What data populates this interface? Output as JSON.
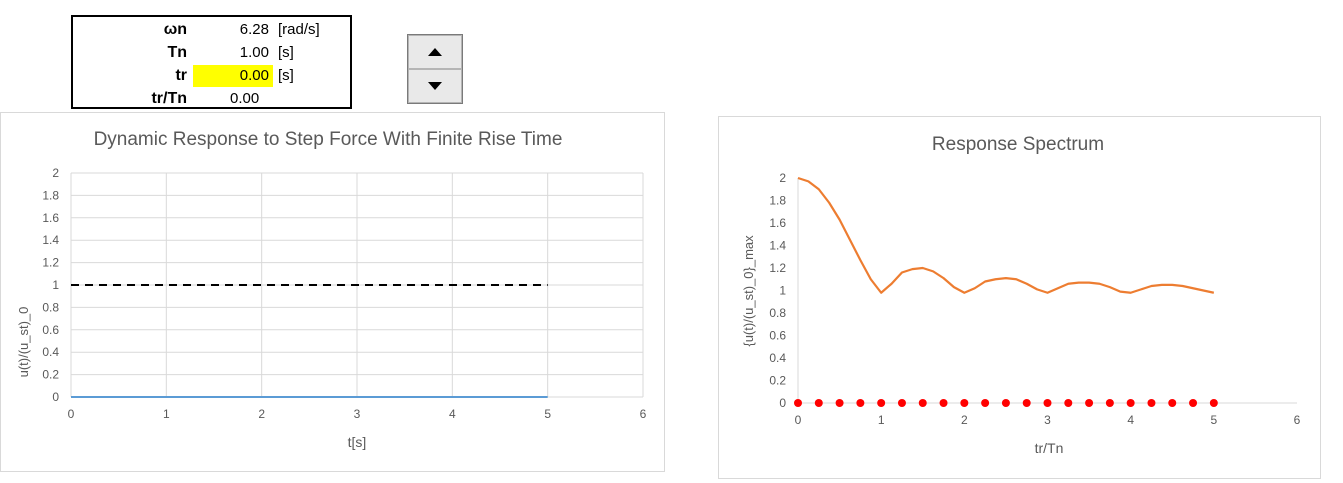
{
  "params": {
    "rows": [
      {
        "label": "ωn",
        "value": "6.28",
        "unit": "[rad/s]"
      },
      {
        "label": "Tn",
        "value": "1.00",
        "unit": "[s]"
      },
      {
        "label": "tr",
        "value": "0.00",
        "unit": "[s]"
      },
      {
        "label": "tr/Tn",
        "value": "0.00",
        "unit": ""
      }
    ]
  },
  "spinner": {
    "up_icon": "triangle-up-icon",
    "down_icon": "triangle-down-icon"
  },
  "colors": {
    "highlight": "#ffff00",
    "response": "#5b9bd5",
    "spectrum": "#ed7d31",
    "marker": "#ff0000",
    "static": "#000000"
  },
  "chart_data": [
    {
      "type": "line",
      "title": "Dynamic Response to Step Force With Finite Rise Time",
      "xlabel": "t[s]",
      "ylabel": "u(t)/(u_st)_0",
      "xlim": [
        0,
        6
      ],
      "ylim": [
        0,
        2
      ],
      "xticks": [
        "0",
        "1",
        "2",
        "3",
        "4",
        "5",
        "6"
      ],
      "yticks": [
        "0",
        "0.2",
        "0.4",
        "0.6",
        "0.8",
        "1",
        "1.2",
        "1.4",
        "1.6",
        "1.8",
        "2"
      ],
      "grid": true,
      "series": [
        {
          "style": "solid",
          "x": [
            0,
            5
          ],
          "y": [
            0,
            0
          ]
        },
        {
          "style": "dashed",
          "x": [
            0,
            5
          ],
          "y": [
            1,
            1
          ]
        }
      ]
    },
    {
      "type": "line",
      "title": "Response Spectrum",
      "xlabel": "tr/Tn",
      "ylabel": "{u(t)/(u_st)_0}_max",
      "xlim": [
        0,
        6
      ],
      "ylim": [
        0,
        2
      ],
      "xticks": [
        "0",
        "1",
        "2",
        "3",
        "4",
        "5",
        "6"
      ],
      "yticks": [
        "0",
        "0.2",
        "0.4",
        "0.6",
        "0.8",
        "1",
        "1.2",
        "1.4",
        "1.6",
        "1.8",
        "2"
      ],
      "grid": false,
      "series": [
        {
          "style": "curve",
          "x": [
            0,
            0.125,
            0.25,
            0.375,
            0.5,
            0.625,
            0.75,
            0.875,
            1.0,
            1.125,
            1.25,
            1.375,
            1.5,
            1.625,
            1.75,
            1.875,
            2.0,
            2.125,
            2.25,
            2.375,
            2.5,
            2.625,
            2.75,
            2.875,
            3.0,
            3.125,
            3.25,
            3.375,
            3.5,
            3.625,
            3.75,
            3.875,
            4.0,
            4.125,
            4.25,
            4.375,
            4.5,
            4.625,
            4.75,
            4.875,
            5.0
          ],
          "y": [
            2.0,
            1.97,
            1.9,
            1.78,
            1.63,
            1.45,
            1.27,
            1.1,
            0.98,
            1.06,
            1.16,
            1.19,
            1.2,
            1.17,
            1.11,
            1.03,
            0.98,
            1.02,
            1.08,
            1.1,
            1.11,
            1.1,
            1.06,
            1.01,
            0.98,
            1.02,
            1.06,
            1.07,
            1.07,
            1.06,
            1.03,
            0.99,
            0.98,
            1.01,
            1.04,
            1.05,
            1.05,
            1.04,
            1.02,
            1.0,
            0.98
          ]
        },
        {
          "style": "markers",
          "x": [
            0,
            0.25,
            0.5,
            0.75,
            1.0,
            1.25,
            1.5,
            1.75,
            2.0,
            2.25,
            2.5,
            2.75,
            3.0,
            3.25,
            3.5,
            3.75,
            4.0,
            4.25,
            4.5,
            4.75,
            5.0
          ],
          "y": [
            0,
            0,
            0,
            0,
            0,
            0,
            0,
            0,
            0,
            0,
            0,
            0,
            0,
            0,
            0,
            0,
            0,
            0,
            0,
            0,
            0
          ]
        }
      ]
    }
  ]
}
